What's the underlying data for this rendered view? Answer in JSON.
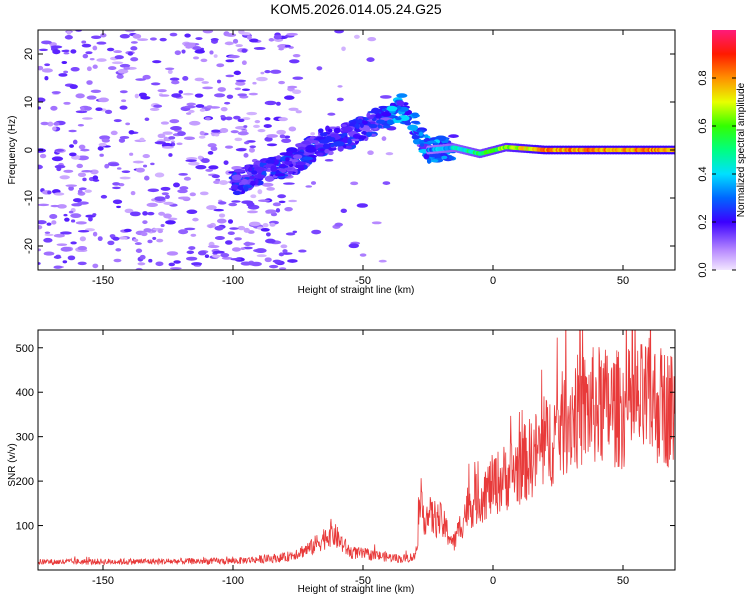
{
  "title": "KOM5.2026.014.05.24.G25",
  "chart_data": [
    {
      "type": "heatmap",
      "name": "spectrogram",
      "xlabel": "Height of straight line (km)",
      "ylabel": "Frequency (Hz)",
      "xlim": [
        -175,
        70
      ],
      "ylim": [
        -25,
        25
      ],
      "xticks": [
        -150,
        -100,
        -50,
        0,
        50
      ],
      "xtick_labels": [
        "-150",
        "-100",
        "-50",
        "0",
        "50"
      ],
      "yticks": [
        -20,
        -10,
        0,
        10,
        20
      ],
      "ytick_labels": [
        "-20",
        "-10",
        "0",
        "10",
        "20"
      ],
      "ridge": [
        {
          "x": -85,
          "f": -4
        },
        {
          "x": -75,
          "f": -2
        },
        {
          "x": -65,
          "f": 2
        },
        {
          "x": -55,
          "f": 3
        },
        {
          "x": -45,
          "f": 6
        },
        {
          "x": -35,
          "f": 9
        },
        {
          "x": -30,
          "f": 5
        },
        {
          "x": -25,
          "f": 0
        },
        {
          "x": -15,
          "f": 0.5
        },
        {
          "x": -5,
          "f": -0.8
        },
        {
          "x": 5,
          "f": 0.6
        },
        {
          "x": 20,
          "f": 0
        },
        {
          "x": 70,
          "f": 0
        }
      ]
    },
    {
      "type": "line",
      "name": "snr",
      "xlabel": "Height of straight line (km)",
      "ylabel": "SNR (v/v)",
      "xlim": [
        -175,
        70
      ],
      "ylim": [
        0,
        540
      ],
      "xticks": [
        -150,
        -100,
        -50,
        0,
        50
      ],
      "xtick_labels": [
        "-150",
        "-100",
        "-50",
        "0",
        "50"
      ],
      "yticks": [
        100,
        200,
        300,
        400,
        500
      ],
      "ytick_labels": [
        "100",
        "200",
        "300",
        "400",
        "500"
      ],
      "color": "#e83a3a",
      "envelope": [
        {
          "x": -175,
          "y": 18
        },
        {
          "x": -100,
          "y": 20
        },
        {
          "x": -80,
          "y": 28
        },
        {
          "x": -70,
          "y": 50
        },
        {
          "x": -62,
          "y": 85
        },
        {
          "x": -55,
          "y": 40
        },
        {
          "x": -35,
          "y": 25
        },
        {
          "x": -30,
          "y": 30
        },
        {
          "x": -28,
          "y": 130
        },
        {
          "x": -20,
          "y": 110
        },
        {
          "x": -15,
          "y": 60
        },
        {
          "x": -10,
          "y": 140
        },
        {
          "x": 0,
          "y": 190
        },
        {
          "x": 10,
          "y": 230
        },
        {
          "x": 20,
          "y": 280
        },
        {
          "x": 30,
          "y": 350
        },
        {
          "x": 40,
          "y": 370
        },
        {
          "x": 50,
          "y": 360
        },
        {
          "x": 60,
          "y": 380
        },
        {
          "x": 70,
          "y": 360
        }
      ]
    }
  ],
  "colorbar": {
    "label": "Normalized spectral amplitude",
    "range": [
      0,
      1
    ],
    "ticks": [
      0.0,
      0.2,
      0.4,
      0.6,
      0.8
    ],
    "tick_labels": [
      "0.0",
      "0.2",
      "0.4",
      "0.6",
      "0.8"
    ]
  }
}
